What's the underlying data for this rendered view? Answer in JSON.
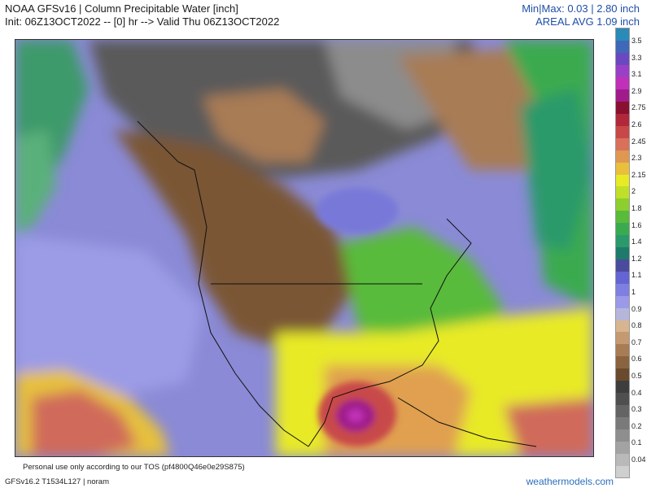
{
  "header": {
    "title_line1": "NOAA GFSv16 | Column Precipitable Water [inch]",
    "title_line2": "Init: 06Z13OCT2022 -- [0] hr --> Valid Thu 06Z13OCT2022",
    "minmax": "Min|Max: 0.03 | 2.80 inch",
    "areal_avg": "AREAL AVG 1.09 inch"
  },
  "colorbar": {
    "unit": "inch",
    "segments": [
      {
        "color": "#cfcfcf"
      },
      {
        "color": "#b9b9b9"
      },
      {
        "color": "#a3a3a3"
      },
      {
        "color": "#8e8e8e"
      },
      {
        "color": "#7a7a7a"
      },
      {
        "color": "#646464"
      },
      {
        "color": "#4f4f4f"
      },
      {
        "color": "#3d3d3d"
      },
      {
        "color": "#6a4a2c"
      },
      {
        "color": "#8a6440"
      },
      {
        "color": "#a87c55"
      },
      {
        "color": "#c59a70"
      },
      {
        "color": "#d8b58e"
      },
      {
        "color": "#b6b6dd"
      },
      {
        "color": "#9a9ae8"
      },
      {
        "color": "#7f7fe2"
      },
      {
        "color": "#6464d3"
      },
      {
        "color": "#4b4b9e"
      },
      {
        "color": "#1e7a6a"
      },
      {
        "color": "#2a9a6a"
      },
      {
        "color": "#3aaa50"
      },
      {
        "color": "#58bb3a"
      },
      {
        "color": "#8ccf2e"
      },
      {
        "color": "#c0df28"
      },
      {
        "color": "#e8ea26"
      },
      {
        "color": "#e8c03c"
      },
      {
        "color": "#e09850"
      },
      {
        "color": "#d8705a"
      },
      {
        "color": "#c84848"
      },
      {
        "color": "#b0283a"
      },
      {
        "color": "#8a1030"
      },
      {
        "color": "#a01c8a"
      },
      {
        "color": "#c030b8"
      },
      {
        "color": "#9a40c8"
      },
      {
        "color": "#6a48c0"
      },
      {
        "color": "#3f68b8"
      },
      {
        "color": "#2a8ab8"
      }
    ],
    "labels": [
      "3.5",
      "3.3",
      "3.1",
      "2.9",
      "2.75",
      "2.6",
      "2.45",
      "2.3",
      "2.15",
      "2",
      "1.8",
      "1.6",
      "1.4",
      "1.2",
      "1.1",
      "1",
      "0.9",
      "0.8",
      "0.7",
      "0.6",
      "0.5",
      "0.4",
      "0.3",
      "0.2",
      "0.1",
      "0.04"
    ]
  },
  "map": {
    "description_regions": [
      {
        "name": "high-pw-gulf-storm",
        "color": "#8a1030"
      },
      {
        "name": "moist-caribbean",
        "color": "#e8ea26"
      },
      {
        "name": "dry-arctic",
        "color": "#5a5a5a"
      },
      {
        "name": "dry-plains",
        "color": "#8a6440"
      },
      {
        "name": "moderate-pacific",
        "color": "#8c8ce0"
      }
    ]
  },
  "footer": {
    "tos": "Personal use only according to our TOS (pf4800Q46e0e29S875)",
    "model": "GFSv16.2 T1534L127 | noram",
    "brand": "weathermodels.com"
  }
}
